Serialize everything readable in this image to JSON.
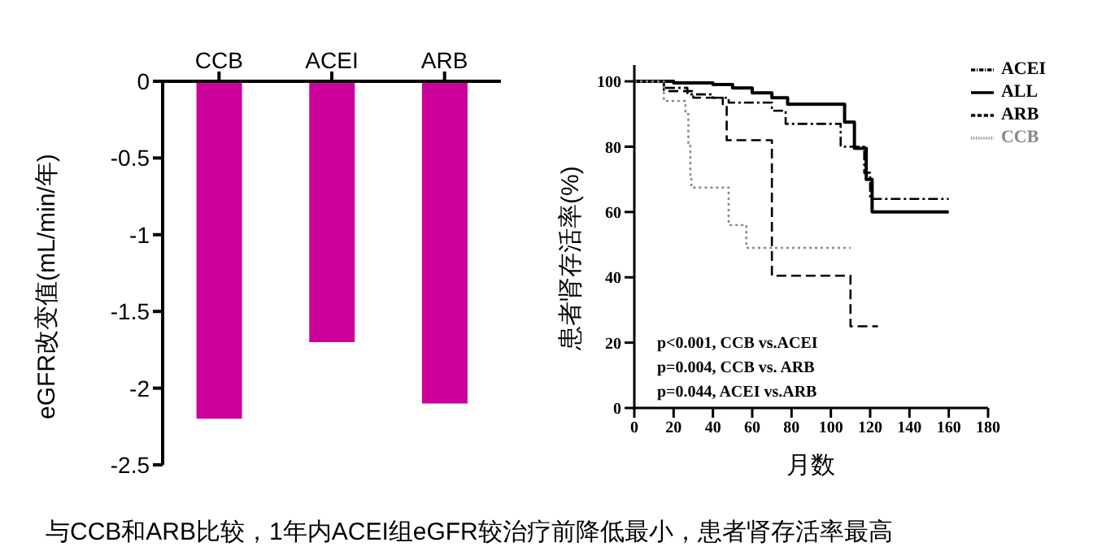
{
  "chart_data": [
    {
      "type": "bar",
      "ylabel": "eGFR改变值(mL/min/年)",
      "categories": [
        "CCB",
        "ACEI",
        "ARB"
      ],
      "values": [
        -2.2,
        -1.7,
        -2.1
      ],
      "color": "#cc0099",
      "ylim": [
        -2.5,
        0
      ],
      "yticks": [
        0,
        -0.5,
        -1,
        -1.5,
        -2,
        -2.5
      ],
      "grid": false,
      "legend": false,
      "annotations": [
        "与CCB和ARB比较，1年内ACEI组eGFR较治疗前降低最小，患者肾存活率最高"
      ]
    },
    {
      "type": "step",
      "xlabel": "月数",
      "ylabel": "患者肾存活率(%)",
      "xlim": [
        0,
        180
      ],
      "xticks": [
        0,
        20,
        40,
        60,
        80,
        100,
        120,
        140,
        160,
        180
      ],
      "ylim": [
        0,
        105
      ],
      "yticks": [
        0,
        20,
        40,
        60,
        80,
        100
      ],
      "grid": false,
      "legend": "top right",
      "marker": "none",
      "series": [
        {
          "name": "ALL",
          "color": "#000000",
          "line_style": "solid",
          "x": [
            0,
            20,
            40,
            50,
            60,
            70,
            78,
            107,
            112,
            118,
            121,
            160
          ],
          "values": [
            100,
            99.5,
            99,
            98,
            96.5,
            95,
            93,
            87.5,
            79.5,
            70,
            60,
            60
          ]
        },
        {
          "name": "ACEI",
          "color": "#000000",
          "line_style": "dashdot",
          "x": [
            0,
            15,
            27,
            40,
            48,
            70,
            77,
            105,
            117,
            120,
            160
          ],
          "values": [
            100,
            98,
            96,
            95,
            93.5,
            91,
            87,
            80,
            72,
            64,
            64
          ]
        },
        {
          "name": "ARB",
          "color": "#000000",
          "line_style": "dashed",
          "x": [
            0,
            15,
            30,
            45,
            47,
            70,
            110,
            124
          ],
          "values": [
            100,
            97,
            95,
            93,
            82,
            40.5,
            25,
            25
          ]
        },
        {
          "name": "CCB",
          "color": "#888888",
          "line_style": "dotted",
          "x": [
            0,
            15,
            26,
            27.5,
            28.5,
            29,
            48,
            57,
            110
          ],
          "values": [
            100,
            94,
            90,
            81,
            71,
            67.5,
            56,
            49,
            49
          ]
        }
      ],
      "annotations": [
        "p<0.001, CCB vs.ACEI",
        "p=0.004, CCB vs. ARB",
        "p=0.044, ACEI vs.ARB"
      ]
    }
  ]
}
